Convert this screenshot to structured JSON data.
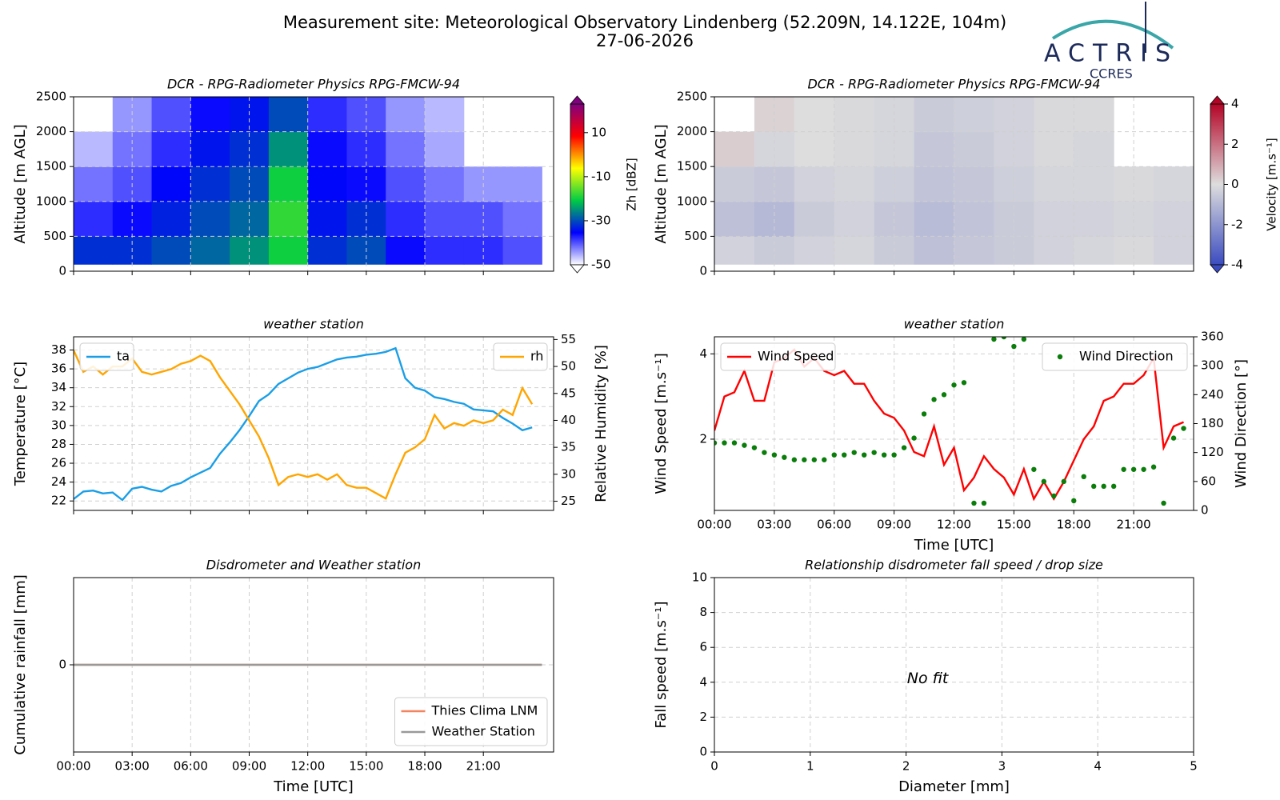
{
  "header": {
    "title": "Measurement site: Meteorological Observatory Lindenberg (52.209N, 14.122E, 104m)",
    "date": "27-06-2026",
    "logo": "ACTRIS",
    "logo_sub": "CCRES"
  },
  "chart_data": [
    {
      "type": "heatmap",
      "title": "DCR - RPG-Radiometer Physics RPG-FMCW-94",
      "ylabel": "Altitude [m AGL]",
      "xlim": [
        0,
        24.6
      ],
      "xticks": [
        0,
        3,
        6,
        9,
        12,
        15,
        18,
        21
      ],
      "xticklabels": false,
      "ylim": [
        0,
        2500
      ],
      "yticks": [
        0,
        500,
        1000,
        1500,
        2000,
        2500
      ],
      "grid": true,
      "xbins": [
        0,
        2,
        4,
        6,
        8,
        10,
        12,
        14,
        16,
        18,
        20,
        22,
        24
      ],
      "ybins": [
        100,
        500,
        1000,
        1500,
        2000,
        2500
      ],
      "z": [
        [
          -32,
          -32,
          -30,
          -28,
          -25,
          -20,
          -32,
          -30,
          -36,
          -38,
          -38,
          -40
        ],
        [
          -38,
          -36,
          -33,
          -30,
          -28,
          -18,
          -34,
          -32,
          -38,
          -40,
          -40,
          -42
        ],
        [
          -42,
          -40,
          -35,
          -32,
          -30,
          -20,
          -35,
          -36,
          -40,
          -42,
          -44,
          -44
        ],
        [
          -46,
          -42,
          -38,
          -34,
          -32,
          -25,
          -36,
          -38,
          -42,
          -45,
          null,
          null
        ],
        [
          null,
          -44,
          -40,
          -36,
          -34,
          -30,
          -38,
          -40,
          -44,
          -46,
          null,
          null
        ]
      ],
      "colorbar": {
        "label": "Zh [dBZ]",
        "lim": [
          -50,
          23
        ],
        "ticks": [
          -50,
          -30,
          -10,
          10
        ],
        "colors": [
          "#ffffff",
          "#0000ff",
          "#00cc44",
          "#ffff00",
          "#ff0000",
          "#800080"
        ]
      }
    },
    {
      "type": "heatmap",
      "title": "DCR - RPG-Radiometer Physics RPG-FMCW-94",
      "ylabel": "Altitude [m AGL]",
      "xlim": [
        0,
        24
      ],
      "xticks": [
        0,
        3,
        6,
        9,
        12,
        15,
        18,
        21
      ],
      "xticklabels": false,
      "ylim": [
        0,
        2500
      ],
      "yticks": [
        0,
        500,
        1000,
        1500,
        2000,
        2500
      ],
      "grid": true,
      "xbins": [
        0,
        2,
        4,
        6,
        8,
        10,
        12,
        14,
        16,
        18,
        20,
        22,
        24
      ],
      "ybins": [
        100,
        500,
        1000,
        1500,
        2000,
        2500
      ],
      "z": [
        [
          -0.3,
          -0.5,
          -0.3,
          -0.2,
          -0.5,
          -0.8,
          -0.6,
          -0.5,
          -0.3,
          -0.2,
          -0.1,
          -0.3
        ],
        [
          -0.8,
          -1.0,
          -0.5,
          -0.3,
          -0.6,
          -0.9,
          -0.7,
          -0.5,
          -0.3,
          -0.3,
          -0.2,
          -0.3
        ],
        [
          -0.5,
          -0.6,
          -0.3,
          -0.2,
          -0.4,
          -0.7,
          -0.6,
          -0.4,
          -0.2,
          -0.2,
          -0.1,
          -0.2
        ],
        [
          0.3,
          -0.2,
          0.0,
          -0.1,
          -0.2,
          -0.6,
          -0.5,
          -0.3,
          -0.1,
          -0.2,
          null,
          null
        ],
        [
          null,
          0.2,
          0.0,
          -0.1,
          -0.2,
          -0.5,
          -0.4,
          -0.3,
          -0.1,
          -0.1,
          null,
          null
        ]
      ],
      "colorbar": {
        "label": "Velocity [m.s⁻¹]",
        "lim": [
          -4,
          4
        ],
        "ticks": [
          -4,
          -2,
          0,
          2,
          4
        ],
        "colors": [
          "#3b4cc0",
          "#dddddd",
          "#b40426"
        ]
      }
    },
    {
      "type": "line",
      "title": "weather station",
      "ylabel": "Temperature [°C]",
      "y2label": "Relative Humidity [%]",
      "xlim": [
        0,
        24.6
      ],
      "xticks": [
        0,
        3,
        6,
        9,
        12,
        15,
        18,
        21
      ],
      "xticklabels": false,
      "ylim": [
        21,
        39.4
      ],
      "yticks": [
        22,
        24,
        26,
        28,
        30,
        32,
        34,
        36,
        38
      ],
      "y2lim": [
        23.3,
        55.5
      ],
      "y2ticks": [
        25,
        30,
        35,
        40,
        45,
        50,
        55
      ],
      "grid": true,
      "legend": "upper left",
      "legend2": "upper right",
      "x": [
        0,
        0.5,
        1,
        1.5,
        2,
        2.5,
        3,
        3.5,
        4,
        4.5,
        5,
        5.5,
        6,
        6.5,
        7,
        7.5,
        8,
        8.5,
        9,
        9.5,
        10,
        10.5,
        11,
        11.5,
        12,
        12.5,
        13,
        13.5,
        14,
        14.5,
        15,
        15.5,
        16,
        16.5,
        17,
        17.5,
        18,
        18.5,
        19,
        19.5,
        20,
        20.5,
        21,
        21.5,
        22,
        22.5,
        23,
        23.5
      ],
      "series": [
        {
          "name": "ta",
          "color": "#1a9ee6",
          "values": [
            22.2,
            23,
            23.1,
            22.8,
            22.9,
            22.1,
            23.3,
            23.5,
            23.2,
            23.0,
            23.6,
            23.9,
            24.5,
            25.0,
            25.5,
            27.0,
            28.2,
            29.5,
            31,
            32.6,
            33.3,
            34.4,
            35.0,
            35.6,
            36.0,
            36.2,
            36.6,
            37,
            37.2,
            37.3,
            37.5,
            37.6,
            37.8,
            38.2,
            35.0,
            34.0,
            33.7,
            33.0,
            32.8,
            32.5,
            32.3,
            31.7,
            31.6,
            31.5,
            30.8,
            30.2,
            29.5,
            29.8
          ]
        },
        {
          "name": "rh",
          "color": "#ffa500",
          "axis": "y2",
          "values": [
            53,
            49,
            50,
            48.5,
            50,
            50,
            51.5,
            49,
            48.5,
            49,
            49.5,
            50.5,
            51,
            52,
            51,
            48,
            45.5,
            43,
            40,
            37,
            33,
            28,
            29.5,
            30,
            29.5,
            30,
            29,
            30,
            28,
            27.5,
            27.5,
            26.5,
            25.5,
            30,
            34,
            35,
            36.5,
            41,
            38.5,
            39.5,
            39,
            40,
            39.5,
            40,
            42,
            41,
            46,
            43
          ]
        }
      ]
    },
    {
      "type": "line",
      "title": "weather station",
      "ylabel": "Wind Speed [m.s⁻¹]",
      "y2label": "Wind Direction [°]",
      "xlabel": "Time [UTC]",
      "xlim": [
        0,
        24
      ],
      "xticks": [
        {
          "value": 0,
          "label": "00:00"
        },
        {
          "value": 3,
          "label": "03:00"
        },
        {
          "value": 6,
          "label": "06:00"
        },
        {
          "value": 9,
          "label": "09:00"
        },
        {
          "value": 12,
          "label": "12:00"
        },
        {
          "value": 15,
          "label": "15:00"
        },
        {
          "value": 18,
          "label": "18:00"
        },
        {
          "value": 21,
          "label": "21:00"
        }
      ],
      "ylim": [
        0.33,
        4.4
      ],
      "yticks": [
        2,
        4
      ],
      "y2lim": [
        0,
        360
      ],
      "y2ticks": [
        0,
        60,
        120,
        180,
        240,
        300,
        360
      ],
      "grid": true,
      "legend": "upper left",
      "legend2": "upper right",
      "x": [
        0,
        0.5,
        1,
        1.5,
        2,
        2.5,
        3,
        3.5,
        4,
        4.5,
        5,
        5.5,
        6,
        6.5,
        7,
        7.5,
        8,
        8.5,
        9,
        9.5,
        10,
        10.5,
        11,
        11.5,
        12,
        12.5,
        13,
        13.5,
        14,
        14.5,
        15,
        15.5,
        16,
        16.5,
        17,
        17.5,
        18,
        18.5,
        19,
        19.5,
        20,
        20.5,
        21,
        21.5,
        22,
        22.5,
        23,
        23.5
      ],
      "series": [
        {
          "name": "Wind Speed",
          "color": "#ff0000",
          "values": [
            2.2,
            3.0,
            3.1,
            3.6,
            2.9,
            2.9,
            3.8,
            3.9,
            4.1,
            3.7,
            3.9,
            3.6,
            3.5,
            3.6,
            3.3,
            3.3,
            2.9,
            2.6,
            2.5,
            2.2,
            1.7,
            1.6,
            2.3,
            1.4,
            1.8,
            0.8,
            1.1,
            1.6,
            1.3,
            1.1,
            0.7,
            1.3,
            0.6,
            1.0,
            0.6,
            1.0,
            1.5,
            2.0,
            2.3,
            2.9,
            3.0,
            3.3,
            3.3,
            3.5,
            3.9,
            1.8,
            2.3,
            2.4
          ]
        },
        {
          "name": "Wind Direction",
          "color": "#0a7d0a",
          "axis": "y2",
          "mode": "markers",
          "values": [
            140,
            140,
            140,
            135,
            130,
            120,
            115,
            110,
            105,
            105,
            105,
            105,
            115,
            115,
            120,
            115,
            120,
            115,
            115,
            130,
            150,
            200,
            230,
            240,
            260,
            265,
            15,
            15,
            355,
            360,
            340,
            355,
            85,
            60,
            30,
            60,
            20,
            70,
            50,
            50,
            50,
            85,
            85,
            85,
            90,
            15,
            150,
            170
          ]
        }
      ]
    },
    {
      "type": "line",
      "title": "Disdrometer and Weather station",
      "ylabel": "Cumulative rainfall [mm]",
      "xlabel": "Time [UTC]",
      "xlim": [
        0,
        24.6
      ],
      "xticks": [
        {
          "value": 0,
          "label": "00:00"
        },
        {
          "value": 3,
          "label": "03:00"
        },
        {
          "value": 6,
          "label": "06:00"
        },
        {
          "value": 9,
          "label": "09:00"
        },
        {
          "value": 12,
          "label": "12:00"
        },
        {
          "value": 15,
          "label": "15:00"
        },
        {
          "value": 18,
          "label": "18:00"
        },
        {
          "value": 21,
          "label": "21:00"
        }
      ],
      "ylim": [
        -1,
        1
      ],
      "yticks": [
        0
      ],
      "grid": true,
      "legend": "lower right",
      "x": [
        0,
        24
      ],
      "series": [
        {
          "name": "Thies Clima LNM",
          "color": "#f4845f",
          "values": [
            0,
            0
          ]
        },
        {
          "name": "Weather Station",
          "color": "#999999",
          "values": [
            0,
            0
          ]
        }
      ]
    },
    {
      "type": "scatter",
      "title": "Relationship disdrometer fall speed / drop size",
      "xlabel": "Diameter [mm]",
      "ylabel": "Fall speed [m.s⁻¹]",
      "xlim": [
        0,
        5
      ],
      "xticks": [
        0,
        1,
        2,
        3,
        4,
        5
      ],
      "ylim": [
        0,
        10
      ],
      "yticks": [
        0,
        2,
        4,
        6,
        8,
        10
      ],
      "grid": true,
      "annotation": "No fit",
      "series": []
    }
  ]
}
